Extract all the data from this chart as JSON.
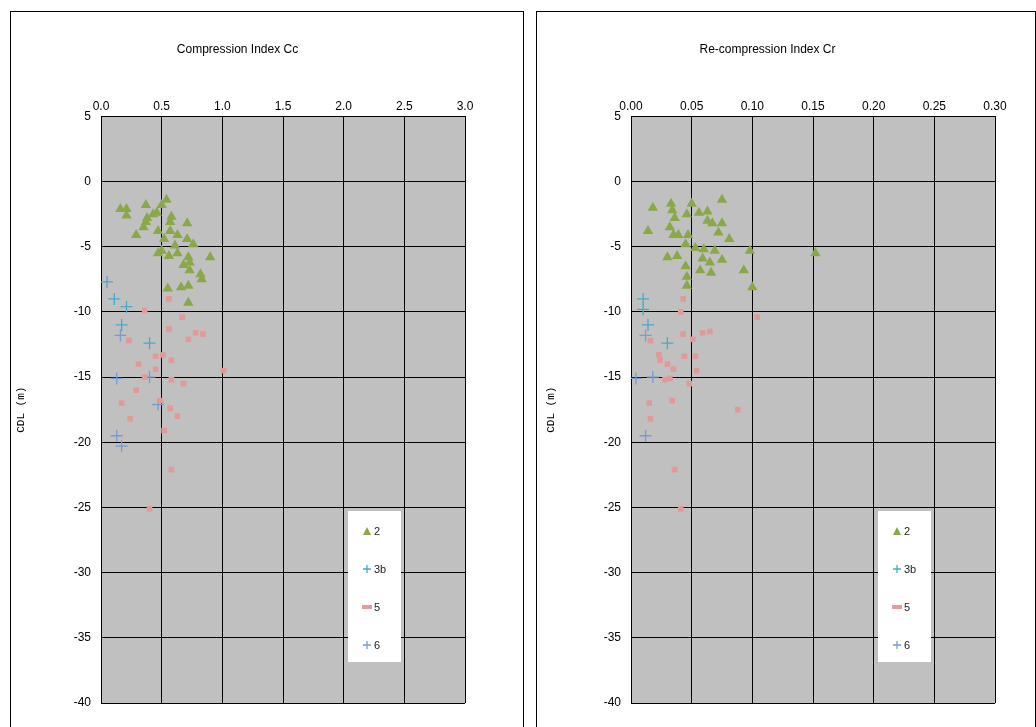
{
  "chart_data": [
    {
      "type": "scatter",
      "title": "Compression Index Cc",
      "ylabel": "CDL (m)",
      "xlim": [
        0,
        3
      ],
      "xticks": [
        {
          "value": 0,
          "label": "0.0"
        },
        {
          "value": 0.5,
          "label": "0.5"
        },
        {
          "value": 1,
          "label": "1.0"
        },
        {
          "value": 1.5,
          "label": "1.5"
        },
        {
          "value": 2,
          "label": "2.0"
        },
        {
          "value": 2.5,
          "label": "2.5"
        },
        {
          "value": 3,
          "label": "3.0"
        }
      ],
      "ylim": [
        -40,
        5
      ],
      "yticks": [
        -40,
        -35,
        -30,
        -25,
        -20,
        -15,
        -10,
        -5,
        0,
        5
      ],
      "grid": true,
      "legend": "bottom right",
      "series": [
        {
          "name": "2",
          "color": "#8aa84a",
          "marker": "triangle",
          "x": [
            0.16,
            0.21,
            0.21,
            0.37,
            0.54,
            0.5,
            0.46,
            0.43,
            0.38,
            0.37,
            0.35,
            0.29,
            0.58,
            0.57,
            0.71,
            0.47,
            0.57,
            0.63,
            0.52,
            0.71,
            0.76,
            0.61,
            0.5,
            0.47,
            0.56,
            0.63,
            0.72,
            0.9,
            0.73,
            0.68,
            0.73,
            0.82,
            0.83,
            0.66,
            0.72,
            0.55,
            0.72
          ],
          "values": [
            -2.1,
            -2.1,
            -2.6,
            -1.8,
            -1.4,
            -1.8,
            -2.4,
            -2.5,
            -2.8,
            -3.1,
            -3.5,
            -4.1,
            -2.7,
            -3.1,
            -3.2,
            -3.8,
            -3.8,
            -4.1,
            -4.4,
            -4.4,
            -4.8,
            -4.9,
            -5.3,
            -5.5,
            -5.7,
            -5.5,
            -5.8,
            -5.8,
            -6.2,
            -6.4,
            -6.8,
            -7.1,
            -7.5,
            -8.1,
            -8.0,
            -8.2,
            -9.3
          ]
        },
        {
          "name": "3b",
          "color": "#4aa8c8",
          "marker": "cross",
          "x": [
            0.05,
            0.11,
            0.21,
            0.17,
            0.4
          ],
          "values": [
            -7.7,
            -9.0,
            -9.6,
            -11.0,
            -12.4
          ]
        },
        {
          "name": "5",
          "color": "#e09a9a",
          "marker": "square",
          "x": [
            0.56,
            0.36,
            0.67,
            0.56,
            0.23,
            0.72,
            0.78,
            0.84,
            0.51,
            0.45,
            0.58,
            0.31,
            0.45,
            1.01,
            0.36,
            0.58,
            0.68,
            0.29,
            0.49,
            0.17,
            0.57,
            0.63,
            0.24,
            0.52,
            0.58,
            0.4
          ],
          "values": [
            -9.0,
            -9.9,
            -10.4,
            -11.3,
            -12.2,
            -12.1,
            -11.6,
            -11.7,
            -13.3,
            -13.4,
            -13.7,
            -14.0,
            -14.4,
            -14.5,
            -15.0,
            -15.2,
            -15.5,
            -16.0,
            -16.8,
            -17.0,
            -17.4,
            -18.0,
            -18.2,
            -19.1,
            -22.1,
            -25.1
          ]
        },
        {
          "name": "6",
          "color": "#7a9ad0",
          "marker": "cross",
          "x": [
            0.16,
            0.13,
            0.4,
            0.47,
            0.13,
            0.17
          ],
          "values": [
            -11.8,
            -15.1,
            -15.0,
            -17.1,
            -19.5,
            -20.3
          ]
        }
      ]
    },
    {
      "type": "scatter",
      "title": "Re-compression Index Cr",
      "ylabel": "CDL (m)",
      "xlim": [
        0,
        0.3
      ],
      "xticks": [
        {
          "value": 0,
          "label": "0.00"
        },
        {
          "value": 0.05,
          "label": "0.05"
        },
        {
          "value": 0.1,
          "label": "0.10"
        },
        {
          "value": 0.15,
          "label": "0.15"
        },
        {
          "value": 0.2,
          "label": "0.20"
        },
        {
          "value": 0.25,
          "label": "0.25"
        },
        {
          "value": 0.3,
          "label": "0.30"
        }
      ],
      "ylim": [
        -40,
        5
      ],
      "yticks": [
        -40,
        -35,
        -30,
        -25,
        -20,
        -15,
        -10,
        -5,
        0,
        5
      ],
      "grid": true,
      "legend": "bottom right",
      "series": [
        {
          "name": "2",
          "color": "#8aa84a",
          "marker": "triangle",
          "x": [
            0.018,
            0.014,
            0.033,
            0.034,
            0.036,
            0.032,
            0.035,
            0.039,
            0.05,
            0.046,
            0.056,
            0.063,
            0.063,
            0.067,
            0.075,
            0.075,
            0.072,
            0.081,
            0.047,
            0.045,
            0.053,
            0.06,
            0.069,
            0.03,
            0.038,
            0.059,
            0.065,
            0.075,
            0.045,
            0.057,
            0.066,
            0.046,
            0.046,
            0.093,
            0.098,
            0.1,
            0.152
          ],
          "values": [
            -2.0,
            -3.8,
            -1.7,
            -2.2,
            -2.8,
            -3.5,
            -4.1,
            -4.1,
            -1.7,
            -2.5,
            -2.4,
            -2.3,
            -3.0,
            -3.2,
            -1.4,
            -3.2,
            -3.9,
            -4.4,
            -4.1,
            -4.8,
            -5.1,
            -5.2,
            -5.3,
            -5.8,
            -5.7,
            -5.9,
            -6.2,
            -6.0,
            -6.5,
            -6.8,
            -7.0,
            -7.3,
            -8.0,
            -6.8,
            -5.3,
            -8.1,
            -5.5
          ]
        },
        {
          "name": "3b",
          "color": "#4aa8c8",
          "marker": "cross",
          "x": [
            0.01,
            0.01,
            0.014,
            0.03
          ],
          "values": [
            -9.0,
            -9.8,
            -11.0,
            -12.4
          ]
        },
        {
          "name": "5",
          "color": "#e09a9a",
          "marker": "square",
          "x": [
            0.043,
            0.041,
            0.104,
            0.043,
            0.059,
            0.065,
            0.051,
            0.016,
            0.023,
            0.024,
            0.03,
            0.035,
            0.044,
            0.053,
            0.054,
            0.032,
            0.028,
            0.048,
            0.015,
            0.034,
            0.088,
            0.016,
            0.036,
            0.041
          ],
          "values": [
            -9.0,
            -10.0,
            -10.4,
            -11.7,
            -11.6,
            -11.5,
            -12.1,
            -12.2,
            -13.3,
            -13.7,
            -14.0,
            -14.4,
            -13.4,
            -13.4,
            -14.5,
            -15.1,
            -15.2,
            -15.5,
            -17.0,
            -16.8,
            -17.5,
            -18.2,
            -22.1,
            -25.1
          ]
        },
        {
          "name": "6",
          "color": "#7a9ad0",
          "marker": "cross",
          "x": [
            0.012,
            0.004,
            0.018,
            0.012
          ],
          "values": [
            -11.8,
            -15.1,
            -15.0,
            -19.5
          ]
        }
      ]
    }
  ]
}
